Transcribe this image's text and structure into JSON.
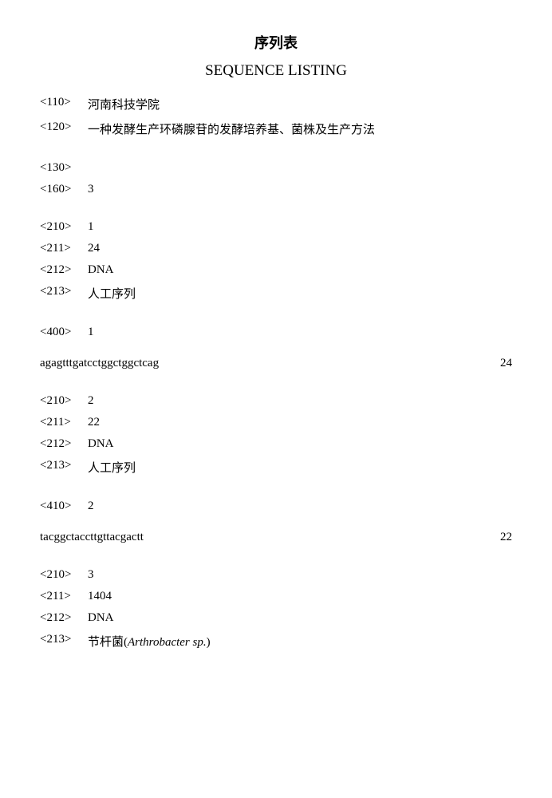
{
  "title_primary": "序列表",
  "title_secondary": "SEQUENCE LISTING",
  "applicant": {
    "tag": "<110>",
    "value": "河南科技学院"
  },
  "invention_title": {
    "tag": "<120>",
    "value": "一种发酵生产环磷腺苷的发酵培养基、菌株及生产方法"
  },
  "file_ref": {
    "tag": "<130>",
    "value": ""
  },
  "seq_count": {
    "tag": "<160>",
    "value": "3"
  },
  "seq1": {
    "id": {
      "tag": "<210>",
      "value": "1"
    },
    "length": {
      "tag": "<211>",
      "value": "24"
    },
    "type": {
      "tag": "<212>",
      "value": "DNA"
    },
    "organism": {
      "tag": "<213>",
      "value": "人工序列"
    },
    "seq_tag": {
      "tag": "<400>",
      "value": "1"
    },
    "sequence": "agagtttgatcctggctggctcag",
    "seq_end": "24"
  },
  "seq2": {
    "id": {
      "tag": "<210>",
      "value": "2"
    },
    "length": {
      "tag": "<211>",
      "value": "22"
    },
    "type": {
      "tag": "<212>",
      "value": "DNA"
    },
    "organism": {
      "tag": "<213>",
      "value": "人工序列"
    },
    "seq_tag": {
      "tag": "<410>",
      "value": "2"
    },
    "sequence": "tacggctaccttgttacgactt",
    "seq_end": "22"
  },
  "seq3": {
    "id": {
      "tag": "<210>",
      "value": "3"
    },
    "length": {
      "tag": "<211>",
      "value": "1404"
    },
    "type": {
      "tag": "<212>",
      "value": "DNA"
    },
    "organism_prefix": "节杆菌(",
    "organism_latin": "Arthrobacter sp.",
    "organism_suffix": ")",
    "organism_tag": "<213>"
  }
}
